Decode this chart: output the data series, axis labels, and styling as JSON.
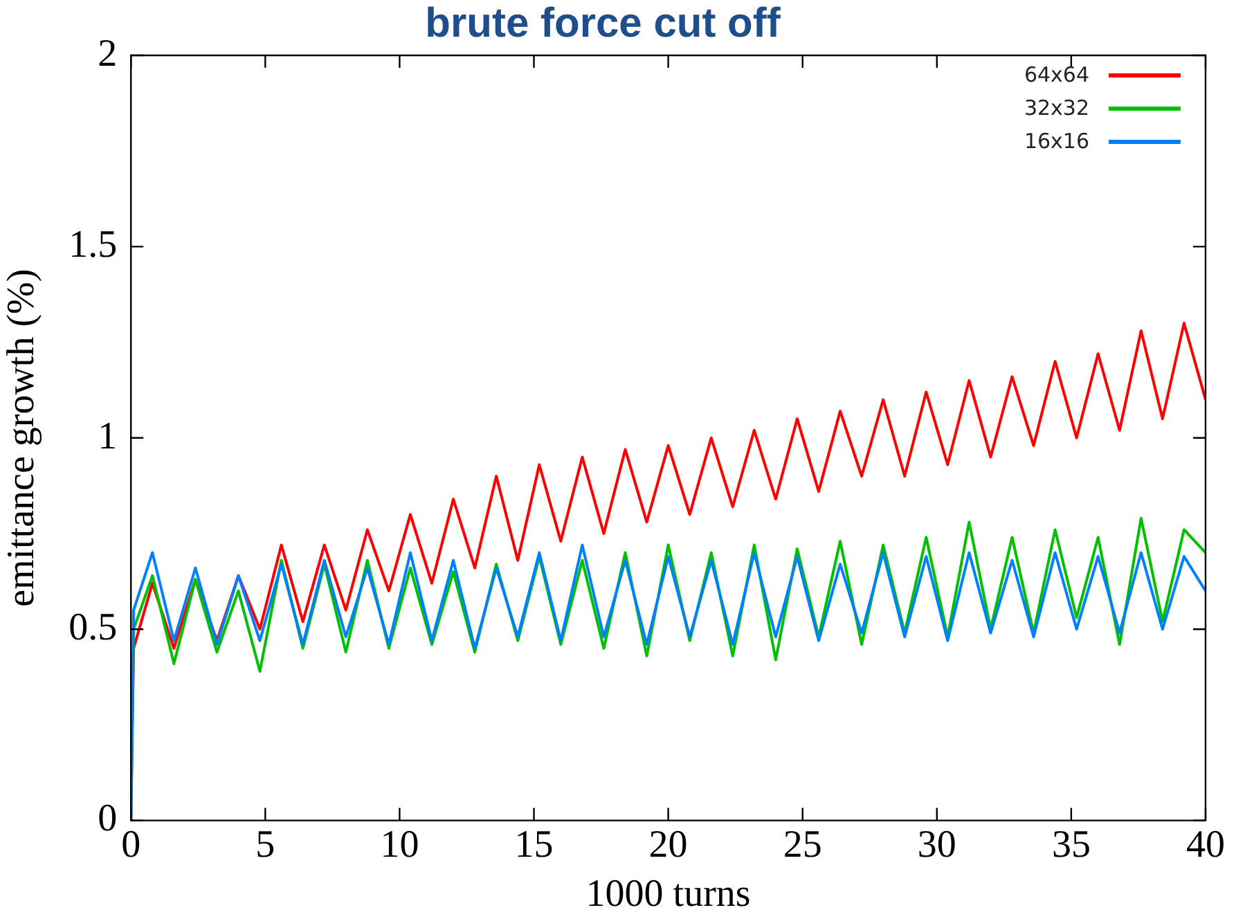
{
  "chart_data": {
    "type": "line",
    "title": "brute force cut off",
    "xlabel": "1000 turns",
    "ylabel": "emittance growth (%)",
    "x": [
      0,
      0.1,
      0.8,
      1.6,
      2.4,
      3.2,
      4,
      4.8,
      5.6,
      6.4,
      7.2,
      8,
      8.8,
      9.6,
      10.4,
      11.2,
      12,
      12.8,
      13.6,
      14.4,
      15.2,
      16,
      16.8,
      17.6,
      18.4,
      19.2,
      20,
      20.8,
      21.6,
      22.4,
      23.2,
      24,
      24.8,
      25.6,
      26.4,
      27.2,
      28,
      28.8,
      29.6,
      30.4,
      31.2,
      32,
      32.8,
      33.6,
      34.4,
      35.2,
      36,
      36.8,
      37.6,
      38.4,
      39.2,
      40
    ],
    "series": [
      {
        "name": "64x64",
        "color": "#ff0000",
        "values": [
          0,
          0.45,
          0.62,
          0.45,
          0.63,
          0.47,
          0.64,
          0.5,
          0.72,
          0.52,
          0.72,
          0.55,
          0.76,
          0.6,
          0.8,
          0.62,
          0.84,
          0.66,
          0.9,
          0.68,
          0.93,
          0.73,
          0.95,
          0.75,
          0.97,
          0.78,
          0.98,
          0.8,
          1.0,
          0.82,
          1.02,
          0.84,
          1.05,
          0.86,
          1.07,
          0.9,
          1.1,
          0.9,
          1.12,
          0.93,
          1.15,
          0.95,
          1.16,
          0.98,
          1.2,
          1.0,
          1.22,
          1.02,
          1.28,
          1.05,
          1.3,
          1.1
        ]
      },
      {
        "name": "32x32",
        "color": "#00c000",
        "values": [
          0,
          0.5,
          0.64,
          0.41,
          0.63,
          0.44,
          0.6,
          0.39,
          0.68,
          0.45,
          0.67,
          0.44,
          0.68,
          0.45,
          0.66,
          0.46,
          0.65,
          0.44,
          0.67,
          0.47,
          0.69,
          0.46,
          0.68,
          0.45,
          0.7,
          0.43,
          0.72,
          0.47,
          0.7,
          0.43,
          0.72,
          0.42,
          0.71,
          0.48,
          0.73,
          0.46,
          0.72,
          0.49,
          0.74,
          0.48,
          0.78,
          0.5,
          0.74,
          0.49,
          0.76,
          0.53,
          0.74,
          0.46,
          0.79,
          0.52,
          0.76,
          0.7
        ]
      },
      {
        "name": "16x16",
        "color": "#0080ff",
        "values": [
          0,
          0.55,
          0.7,
          0.47,
          0.66,
          0.46,
          0.64,
          0.47,
          0.67,
          0.46,
          0.68,
          0.48,
          0.66,
          0.46,
          0.7,
          0.47,
          0.68,
          0.45,
          0.66,
          0.48,
          0.7,
          0.47,
          0.72,
          0.48,
          0.68,
          0.46,
          0.69,
          0.48,
          0.68,
          0.46,
          0.7,
          0.48,
          0.69,
          0.47,
          0.67,
          0.49,
          0.7,
          0.48,
          0.69,
          0.47,
          0.7,
          0.49,
          0.68,
          0.48,
          0.7,
          0.5,
          0.69,
          0.49,
          0.7,
          0.5,
          0.69,
          0.6
        ]
      }
    ],
    "xlim": [
      0,
      40
    ],
    "xticks": [
      0,
      5,
      10,
      15,
      20,
      25,
      30,
      35,
      40
    ],
    "ylim": [
      0,
      2
    ],
    "yticks": [
      0,
      0.5,
      1,
      1.5,
      2
    ],
    "legend": "top right",
    "grid": false,
    "marker": "none",
    "line_style": "solid"
  }
}
